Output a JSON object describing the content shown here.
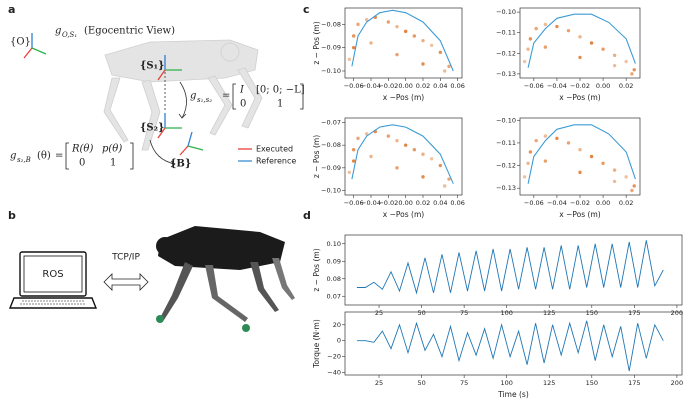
{
  "panel_labels": [
    "a",
    "b",
    "c",
    "d"
  ],
  "diagram_a": {
    "frame_O": "{O}",
    "ego": {
      "symbol": "g",
      "subscript": "O,S₁",
      "caption": "(Egocentric View)"
    },
    "frame_S1": "{S₁}",
    "frame_S2": "{S₂}",
    "frame_B": "{B}",
    "g12": {
      "symbol": "g",
      "subscript": "s₁,s₂",
      "relation": "=",
      "matrix": [
        [
          "I",
          "[0; 0; −L]"
        ],
        [
          "0",
          "1"
        ]
      ]
    },
    "g2B": {
      "symbol": "g",
      "subscript": "s₂,B",
      "argument": "(θ)",
      "relation": "=",
      "matrix": [
        [
          "R(θ)",
          "p(θ)"
        ],
        [
          "0",
          "1"
        ]
      ]
    },
    "legend": [
      {
        "name": "Executed",
        "color": "#e8423a"
      },
      {
        "name": "Reference",
        "color": "#3d8fd1"
      }
    ]
  },
  "diagram_b": {
    "computer": "ROS",
    "link": "TCP/IP"
  },
  "chart_data": [
    {
      "type": "scatter",
      "xlabel": "x −Pos (m)",
      "ylabel": "z − Pos (m)",
      "xlim": [
        -0.07,
        0.065
      ],
      "ylim": [
        -0.103,
        -0.073
      ],
      "xticks": [
        {
          "value": -0.06,
          "label": "−0.06"
        },
        {
          "value": -0.04,
          "label": "−0.04"
        },
        {
          "value": -0.02,
          "label": "−0.02"
        },
        {
          "value": 0,
          "label": "0.00"
        },
        0.02,
        0.04,
        0.06
      ],
      "yticks": [
        {
          "value": -0.08,
          "label": "−0.08"
        },
        {
          "value": -0.09,
          "label": "−0.09"
        },
        {
          "value": -0.1,
          "label": "−0.10"
        }
      ],
      "series": [
        {
          "style": "points",
          "color": "#e0772e",
          "x": [
            -0.065,
            -0.06,
            -0.055,
            -0.045,
            -0.035,
            -0.02,
            -0.01,
            0,
            0.01,
            0.02,
            0.03,
            0.04,
            0.05,
            0.045,
            0.02,
            -0.01,
            -0.04,
            -0.06
          ],
          "y": [
            -0.095,
            -0.085,
            -0.08,
            -0.078,
            -0.077,
            -0.079,
            -0.081,
            -0.083,
            -0.085,
            -0.087,
            -0.089,
            -0.092,
            -0.098,
            -0.1,
            -0.097,
            -0.093,
            -0.088,
            -0.09
          ]
        },
        {
          "style": "line",
          "color": "#3d9bd6",
          "x": [
            -0.062,
            -0.055,
            -0.045,
            -0.03,
            -0.015,
            0,
            0.02,
            0.04,
            0.055
          ],
          "y": [
            -0.098,
            -0.085,
            -0.079,
            -0.075,
            -0.074,
            -0.075,
            -0.079,
            -0.087,
            -0.1
          ]
        }
      ]
    },
    {
      "type": "scatter",
      "xlabel": "x −Pos (m)",
      "xlim": [
        -0.072,
        0.032
      ],
      "ylim": [
        -0.132,
        -0.098
      ],
      "xticks": [
        {
          "value": -0.06,
          "label": "−0.06"
        },
        {
          "value": -0.04,
          "label": "−0.04"
        },
        {
          "value": -0.02,
          "label": "−0.02"
        },
        {
          "value": 0,
          "label": "0.00"
        },
        0.02
      ],
      "yticks": [
        {
          "value": -0.1,
          "label": "−0.10"
        },
        {
          "value": -0.11,
          "label": "−0.11"
        },
        {
          "value": -0.12,
          "label": "−0.12"
        },
        {
          "value": -0.13,
          "label": "−0.13"
        }
      ],
      "series": [
        {
          "style": "points",
          "color": "#e0772e",
          "x": [
            -0.068,
            -0.063,
            -0.058,
            -0.05,
            -0.04,
            -0.03,
            -0.02,
            -0.01,
            0,
            0.01,
            0.02,
            0.027,
            0.025,
            0.01,
            -0.02,
            -0.05,
            -0.065
          ],
          "y": [
            -0.124,
            -0.113,
            -0.108,
            -0.106,
            -0.107,
            -0.109,
            -0.112,
            -0.115,
            -0.118,
            -0.121,
            -0.124,
            -0.128,
            -0.13,
            -0.126,
            -0.122,
            -0.117,
            -0.118
          ]
        },
        {
          "style": "line",
          "color": "#3d9bd6",
          "x": [
            -0.065,
            -0.06,
            -0.05,
            -0.04,
            -0.025,
            -0.01,
            0.005,
            0.02,
            0.028
          ],
          "y": [
            -0.127,
            -0.115,
            -0.108,
            -0.103,
            -0.101,
            -0.101,
            -0.105,
            -0.113,
            -0.125
          ]
        }
      ]
    },
    {
      "type": "scatter",
      "xlabel": "x −Pos (m)",
      "ylabel": "z − Pos (m)",
      "xlim": [
        -0.07,
        0.065
      ],
      "ylim": [
        -0.102,
        -0.068
      ],
      "xticks": [
        {
          "value": -0.06,
          "label": "−0.06"
        },
        {
          "value": -0.04,
          "label": "−0.04"
        },
        {
          "value": -0.02,
          "label": "−0.02"
        },
        {
          "value": 0,
          "label": "0.00"
        },
        0.02,
        0.04,
        0.06
      ],
      "yticks": [
        {
          "value": -0.07,
          "label": "−0.07"
        },
        {
          "value": -0.08,
          "label": "−0.08"
        },
        {
          "value": -0.09,
          "label": "−0.09"
        },
        {
          "value": -0.1,
          "label": "−0.10"
        }
      ],
      "series": [
        {
          "style": "points",
          "color": "#e0772e",
          "x": [
            -0.065,
            -0.06,
            -0.055,
            -0.045,
            -0.035,
            -0.02,
            -0.01,
            0,
            0.01,
            0.02,
            0.03,
            0.04,
            0.05,
            0.045,
            0.02,
            -0.01,
            -0.04,
            -0.06
          ],
          "y": [
            -0.092,
            -0.082,
            -0.077,
            -0.075,
            -0.074,
            -0.076,
            -0.078,
            -0.08,
            -0.082,
            -0.084,
            -0.086,
            -0.089,
            -0.095,
            -0.098,
            -0.094,
            -0.09,
            -0.085,
            -0.087
          ]
        },
        {
          "style": "line",
          "color": "#3d9bd6",
          "x": [
            -0.062,
            -0.055,
            -0.045,
            -0.03,
            -0.015,
            0,
            0.02,
            0.04,
            0.055
          ],
          "y": [
            -0.095,
            -0.082,
            -0.076,
            -0.072,
            -0.071,
            -0.072,
            -0.076,
            -0.084,
            -0.097
          ]
        }
      ]
    },
    {
      "type": "scatter",
      "xlabel": "x −Pos (m)",
      "xlim": [
        -0.072,
        0.032
      ],
      "ylim": [
        -0.133,
        -0.099
      ],
      "xticks": [
        {
          "value": -0.06,
          "label": "−0.06"
        },
        {
          "value": -0.04,
          "label": "−0.04"
        },
        {
          "value": -0.02,
          "label": "−0.02"
        },
        {
          "value": 0,
          "label": "0.00"
        },
        0.02
      ],
      "yticks": [
        {
          "value": -0.1,
          "label": "−0.10"
        },
        {
          "value": -0.11,
          "label": "−0.11"
        },
        {
          "value": -0.12,
          "label": "−0.12"
        },
        {
          "value": -0.13,
          "label": "−0.13"
        }
      ],
      "series": [
        {
          "style": "points",
          "color": "#e0772e",
          "x": [
            -0.068,
            -0.063,
            -0.058,
            -0.05,
            -0.04,
            -0.03,
            -0.02,
            -0.01,
            0,
            0.01,
            0.02,
            0.027,
            0.025,
            0.01,
            -0.02,
            -0.05,
            -0.065
          ],
          "y": [
            -0.125,
            -0.114,
            -0.109,
            -0.107,
            -0.108,
            -0.11,
            -0.113,
            -0.116,
            -0.119,
            -0.122,
            -0.125,
            -0.129,
            -0.131,
            -0.127,
            -0.123,
            -0.118,
            -0.119
          ]
        },
        {
          "style": "line",
          "color": "#3d9bd6",
          "x": [
            -0.065,
            -0.06,
            -0.05,
            -0.04,
            -0.025,
            -0.01,
            0.005,
            0.02,
            0.028
          ],
          "y": [
            -0.128,
            -0.116,
            -0.109,
            -0.104,
            -0.102,
            -0.102,
            -0.106,
            -0.114,
            -0.126
          ]
        }
      ]
    },
    {
      "type": "line",
      "ylabel": "z − Pos (m)",
      "xlim": [
        5,
        203
      ],
      "ylim": [
        0.065,
        0.105
      ],
      "xticks": [
        25,
        50,
        75,
        100,
        125,
        150,
        175,
        200
      ],
      "yticks": [
        {
          "value": 0.1,
          "label": "0.10"
        },
        0.09,
        0.08,
        0.07
      ],
      "x": [
        12,
        17,
        22,
        27,
        32,
        37,
        42,
        47,
        52,
        57,
        62,
        67,
        72,
        77,
        82,
        87,
        92,
        97,
        102,
        107,
        112,
        117,
        122,
        127,
        132,
        137,
        142,
        147,
        152,
        157,
        162,
        167,
        172,
        177,
        182,
        187,
        192
      ],
      "series": [
        {
          "color": "#1f77b4",
          "values": [
            0.075,
            0.075,
            0.078,
            0.074,
            0.084,
            0.073,
            0.089,
            0.072,
            0.092,
            0.072,
            0.094,
            0.072,
            0.095,
            0.073,
            0.096,
            0.073,
            0.097,
            0.073,
            0.097,
            0.074,
            0.098,
            0.074,
            0.098,
            0.074,
            0.099,
            0.074,
            0.099,
            0.075,
            0.1,
            0.075,
            0.1,
            0.075,
            0.101,
            0.075,
            0.102,
            0.076,
            0.085
          ]
        }
      ]
    },
    {
      "type": "line",
      "ylabel": "Torque (N·m)",
      "xlabel": "Time (s)",
      "xlim": [
        5,
        203
      ],
      "ylim": [
        -43,
        36
      ],
      "xticks": [
        25,
        50,
        75,
        100,
        125,
        150,
        175,
        200
      ],
      "yticks": [
        20,
        0,
        {
          "value": -20,
          "label": "−20"
        },
        {
          "value": -40,
          "label": "−40"
        }
      ],
      "x": [
        12,
        17,
        22,
        27,
        32,
        37,
        42,
        47,
        52,
        57,
        62,
        67,
        72,
        77,
        82,
        87,
        92,
        97,
        102,
        107,
        112,
        117,
        122,
        127,
        132,
        137,
        142,
        147,
        152,
        157,
        162,
        167,
        172,
        177,
        182,
        187,
        192
      ],
      "series": [
        {
          "color": "#1f77b4",
          "values": [
            0,
            0,
            -2,
            12,
            -10,
            20,
            -15,
            22,
            -12,
            8,
            -20,
            18,
            -25,
            10,
            -18,
            15,
            -22,
            20,
            -20,
            12,
            -30,
            22,
            -28,
            20,
            -18,
            22,
            -15,
            25,
            -25,
            20,
            -20,
            18,
            -38,
            22,
            -22,
            20,
            0
          ]
        }
      ]
    }
  ]
}
